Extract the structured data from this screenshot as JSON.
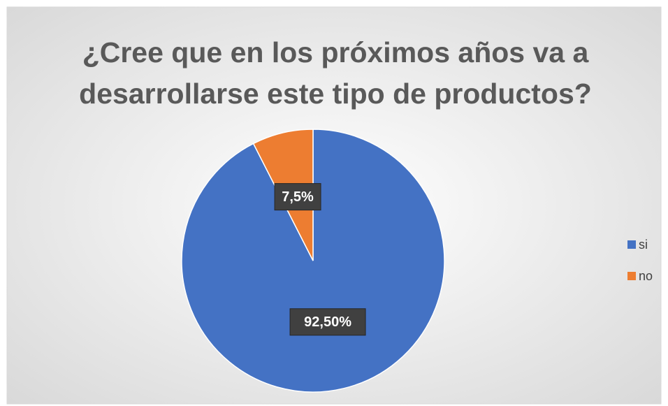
{
  "chart_data": {
    "type": "pie",
    "title": [
      "¿Cree que en los próximos años va a",
      "desarrollarse este tipo de productos?"
    ],
    "categories": [
      "si",
      "no"
    ],
    "values": [
      92.5,
      7.5
    ],
    "value_labels": [
      "92,50%",
      "7,5%"
    ],
    "colors": [
      "#4472c4",
      "#ed7d31"
    ],
    "legend": "right"
  }
}
